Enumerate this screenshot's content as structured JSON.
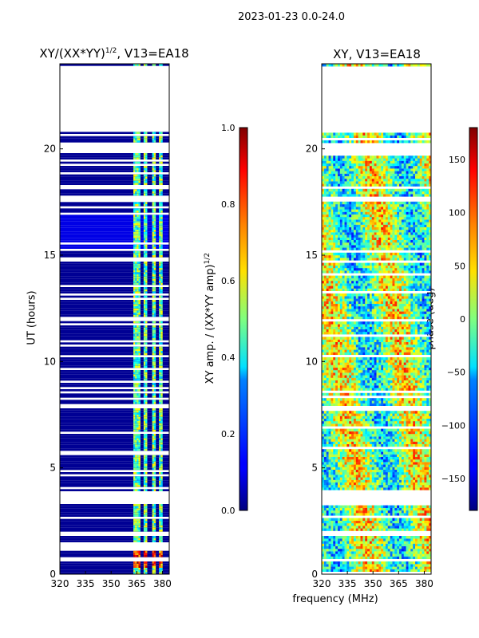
{
  "suptitle": "2023-01-23 0.0-24.0",
  "shared_xlabel": "frequency (MHz)",
  "chart_data": [
    {
      "type": "heatmap",
      "title": "XY/(XX*YY)",
      "title_sup": "1/2",
      "title_suffix": ", V13=EA18",
      "ylabel": "UT (hours)",
      "xlim": [
        320,
        384
      ],
      "ylim": [
        0,
        24
      ],
      "xticks": [
        320,
        335,
        350,
        365,
        380
      ],
      "yticks": [
        0,
        5,
        10,
        15,
        20
      ],
      "colormap": "jet",
      "colorbar": {
        "label": "XY amp. / (XX*YY amp)",
        "label_sup": "1/2",
        "range": [
          0.0,
          1.0
        ],
        "ticks": [
          "0.0",
          "0.2",
          "0.4",
          "0.6",
          "0.8",
          "1.0"
        ]
      },
      "background_level": 0.02,
      "gaps_hours": [
        [
          20.8,
          23.9
        ],
        [
          19.8,
          20.3
        ],
        [
          17.5,
          17.8
        ],
        [
          3.3,
          3.9
        ],
        [
          1.8,
          2.0
        ],
        [
          0.6,
          0.7
        ]
      ],
      "active_bands_mhz": [
        [
          363,
          367
        ],
        [
          369,
          371
        ],
        [
          374,
          376
        ],
        [
          378,
          380
        ]
      ],
      "strong_region": {
        "freq_mhz": [
          363,
          380
        ],
        "hours": [
          0.3,
          1.0
        ],
        "level": 0.9
      }
    },
    {
      "type": "heatmap",
      "title": "XY, V13=EA18",
      "ylabel": "",
      "xlim": [
        320,
        384
      ],
      "ylim": [
        0,
        24
      ],
      "xticks": [
        320,
        335,
        350,
        365,
        380
      ],
      "yticks": [
        0,
        5,
        10,
        15,
        20
      ],
      "colormap": "jet",
      "colorbar": {
        "label": "phase (deg)",
        "range": [
          -180,
          180
        ],
        "ticks": [
          "−150",
          "−100",
          "−50",
          "0",
          "50",
          "100",
          "150"
        ],
        "tick_values": [
          -150,
          -100,
          -50,
          0,
          50,
          100,
          150
        ]
      },
      "gaps_hours": [
        [
          20.8,
          23.9
        ],
        [
          19.8,
          20.3
        ],
        [
          17.5,
          17.8
        ],
        [
          3.3,
          3.9
        ],
        [
          1.8,
          2.0
        ],
        [
          0.6,
          0.7
        ]
      ]
    }
  ]
}
